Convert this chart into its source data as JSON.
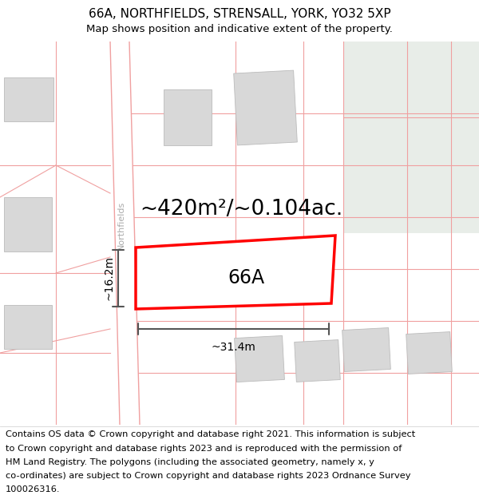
{
  "title_line1": "66A, NORTHFIELDS, STRENSALL, YORK, YO32 5XP",
  "title_line2": "Map shows position and indicative extent of the property.",
  "footer_text": "Contains OS data © Crown copyright and database right 2021. This information is subject to Crown copyright and database rights 2023 and is reproduced with the permission of HM Land Registry. The polygons (including the associated geometry, namely x, y co-ordinates) are subject to Crown copyright and database rights 2023 Ordnance Survey 100026316.",
  "area_label": "~420m²/~0.104ac.",
  "plot_label": "66A",
  "dim_width": "~31.4m",
  "dim_height": "~16.2m",
  "street_name": "Northfields",
  "map_bg": "#f7f6f2",
  "white_bg": "#ffffff",
  "green_bg": "#e8ede8",
  "plot_fill": "#ffffff",
  "plot_border": "#ff0000",
  "building_fill": "#d8d8d8",
  "building_edge": "#bbbbbb",
  "road_line_color": "#f0a0a0",
  "dim_line_color": "#555555",
  "title_fontsize": 11,
  "subtitle_fontsize": 9.5,
  "footer_fontsize": 8.2,
  "label_fontsize": 17,
  "area_fontsize": 19,
  "street_fontsize": 8
}
